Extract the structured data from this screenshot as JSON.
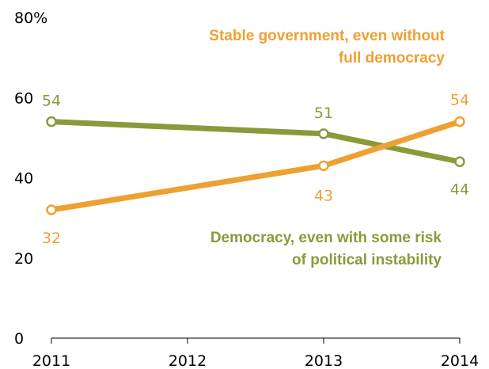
{
  "chart_data": {
    "type": "line",
    "x": [
      2011,
      2012,
      2013,
      2014
    ],
    "x_tick_labels": [
      "2011",
      "2012",
      "2013",
      "2014"
    ],
    "ylim": [
      0,
      80
    ],
    "y_ticks": [
      0,
      20,
      40,
      60,
      80
    ],
    "y_tick_labels": [
      "0",
      "20",
      "40",
      "60",
      "80%"
    ],
    "grid": false,
    "series": [
      {
        "name": "Democracy, even with some risk of political instability",
        "name_lines": [
          "Democracy, even with some risk",
          "of political instability"
        ],
        "color": "#8a9a3b",
        "points": [
          {
            "x": 2011,
            "y": 54,
            "label": "54"
          },
          {
            "x": 2013,
            "y": 51,
            "label": "51"
          },
          {
            "x": 2014,
            "y": 44,
            "label": "44"
          }
        ]
      },
      {
        "name": "Stable government, even without full democracy",
        "name_lines": [
          "Stable government, even without",
          "full democracy"
        ],
        "color": "#eea032",
        "points": [
          {
            "x": 2011,
            "y": 32,
            "label": "32"
          },
          {
            "x": 2013,
            "y": 43,
            "label": "43"
          },
          {
            "x": 2014,
            "y": 54,
            "label": "54"
          }
        ]
      }
    ]
  }
}
